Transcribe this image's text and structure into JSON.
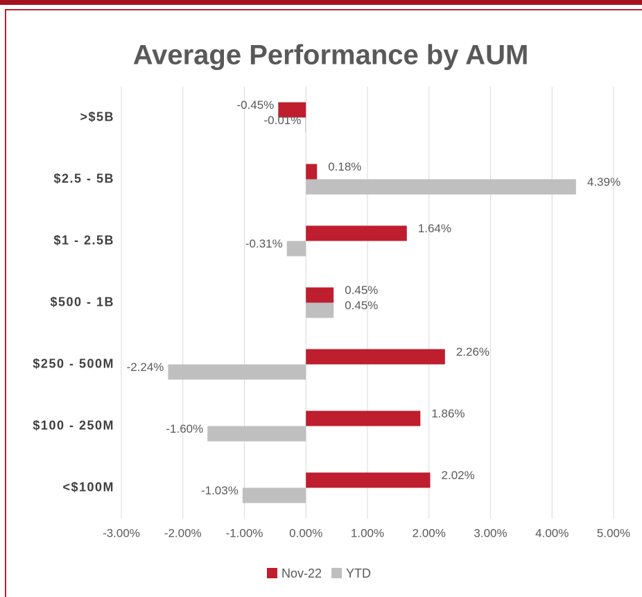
{
  "chart_data": {
    "type": "bar",
    "orientation": "horizontal",
    "title": "Average Performance by AUM",
    "categories": [
      ">$5B",
      "$2.5 - 5B",
      "$1 - 2.5B",
      "$500 - 1B",
      "$250 - 500M",
      "$100 - 250M",
      "<$100M"
    ],
    "series": [
      {
        "name": "Nov-22",
        "color": "#be1e2d",
        "values": [
          -0.45,
          0.18,
          1.64,
          0.45,
          2.26,
          1.86,
          2.02
        ],
        "value_labels": [
          "-0.45%",
          "0.18%",
          "1.64%",
          "0.45%",
          "2.26%",
          "1.86%",
          "2.02%"
        ]
      },
      {
        "name": "YTD",
        "color": "#bfbfbf",
        "values": [
          -0.01,
          4.39,
          -0.31,
          0.45,
          -2.24,
          -1.6,
          -1.03
        ],
        "value_labels": [
          "-0.01%",
          "4.39%",
          "-0.31%",
          "0.45%",
          "-2.24%",
          "-1.60%",
          "-1.03%"
        ]
      }
    ],
    "xlim": [
      -3,
      5
    ],
    "xticks": [
      {
        "value": -3,
        "label": "-3.00%"
      },
      {
        "value": -2,
        "label": "-2.00%"
      },
      {
        "value": -1,
        "label": "-1.00%"
      },
      {
        "value": 0,
        "label": "0.00%"
      },
      {
        "value": 1,
        "label": "1.00%"
      },
      {
        "value": 2,
        "label": "2.00%"
      },
      {
        "value": 3,
        "label": "3.00%"
      },
      {
        "value": 4,
        "label": "4.00%"
      },
      {
        "value": 5,
        "label": "5.00%"
      }
    ],
    "grid": true,
    "legend": "bottom"
  }
}
